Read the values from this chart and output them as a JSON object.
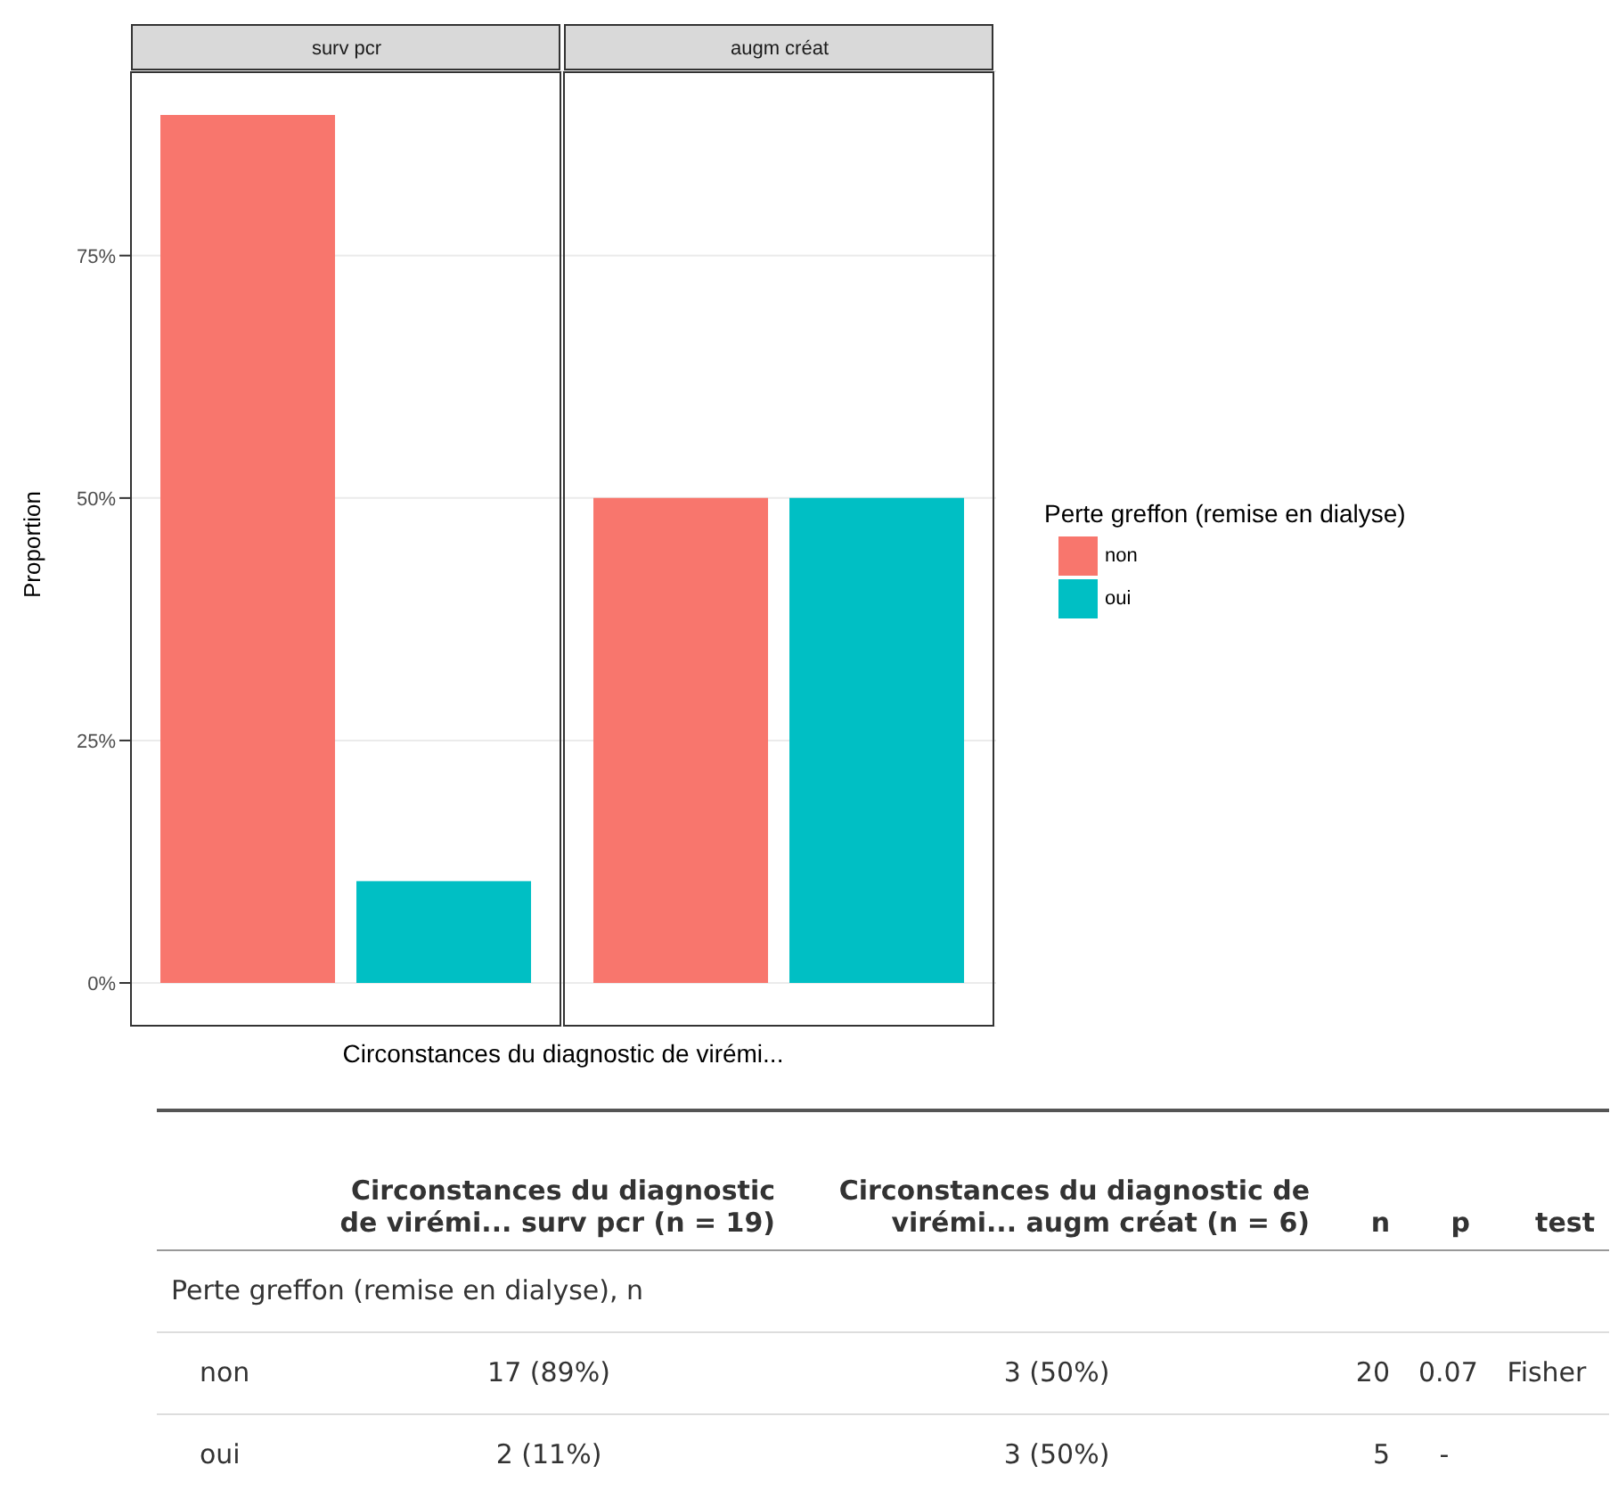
{
  "chart_data": [
    {
      "type": "bar",
      "xlabel": "Circonstances du diagnostic de virémi...",
      "ylabel": "Proportion",
      "categories": [
        "surv pcr",
        "augm créat"
      ],
      "series": [
        {
          "name": "non",
          "color": "#f8766d",
          "values": [
            89.5,
            50
          ]
        },
        {
          "name": "oui",
          "color": "#00bfc4",
          "values": [
            10.5,
            50
          ]
        }
      ],
      "ylim": [
        -4.5,
        94
      ],
      "yticks": [
        {
          "value": 0,
          "label": "0%"
        },
        {
          "value": 25,
          "label": "25%"
        },
        {
          "value": 50,
          "label": "50%"
        },
        {
          "value": 75,
          "label": "75%"
        }
      ],
      "grid": "y",
      "legend": "right",
      "legend_title": "Perte greffon (remise en dialyse)"
    },
    {
      "type": "other",
      "annotations": [
        "Circonstances du diagnostic de virémi... surv pcr (n = 19)",
        "Circonstances du diagnostic de virémi... augm créat (n = 6)",
        "n",
        "p",
        "test",
        "Perte greffon (remise en dialyse), n",
        "non",
        "17 (89%)",
        "3 (50%)",
        "20",
        "0.07",
        "Fisher",
        "oui",
        "2 (11%)",
        "3 (50%)",
        "5",
        "-"
      ]
    }
  ]
}
